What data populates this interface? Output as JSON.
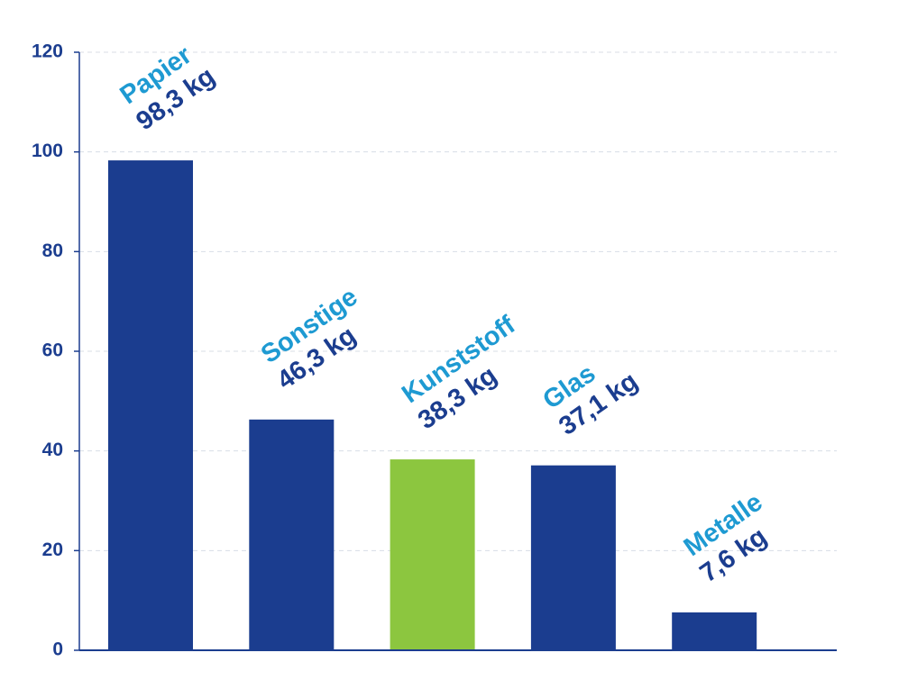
{
  "chart_data": {
    "type": "bar",
    "categories": [
      "Papier",
      "Sonstige",
      "Kunststoff",
      "Glas",
      "Metalle"
    ],
    "values": [
      98.3,
      46.3,
      38.3,
      37.1,
      7.6
    ],
    "value_labels": [
      "98,3 kg",
      "46,3 kg",
      "38,3 kg",
      "37,1 kg",
      "7,6 kg"
    ],
    "colors": [
      "#1b3d8f",
      "#1b3d8f",
      "#8cc63f",
      "#1b3d8f",
      "#1b3d8f"
    ],
    "ylim": [
      0,
      120
    ],
    "yticks": [
      0,
      20,
      40,
      60,
      80,
      100,
      120
    ],
    "grid": true
  }
}
